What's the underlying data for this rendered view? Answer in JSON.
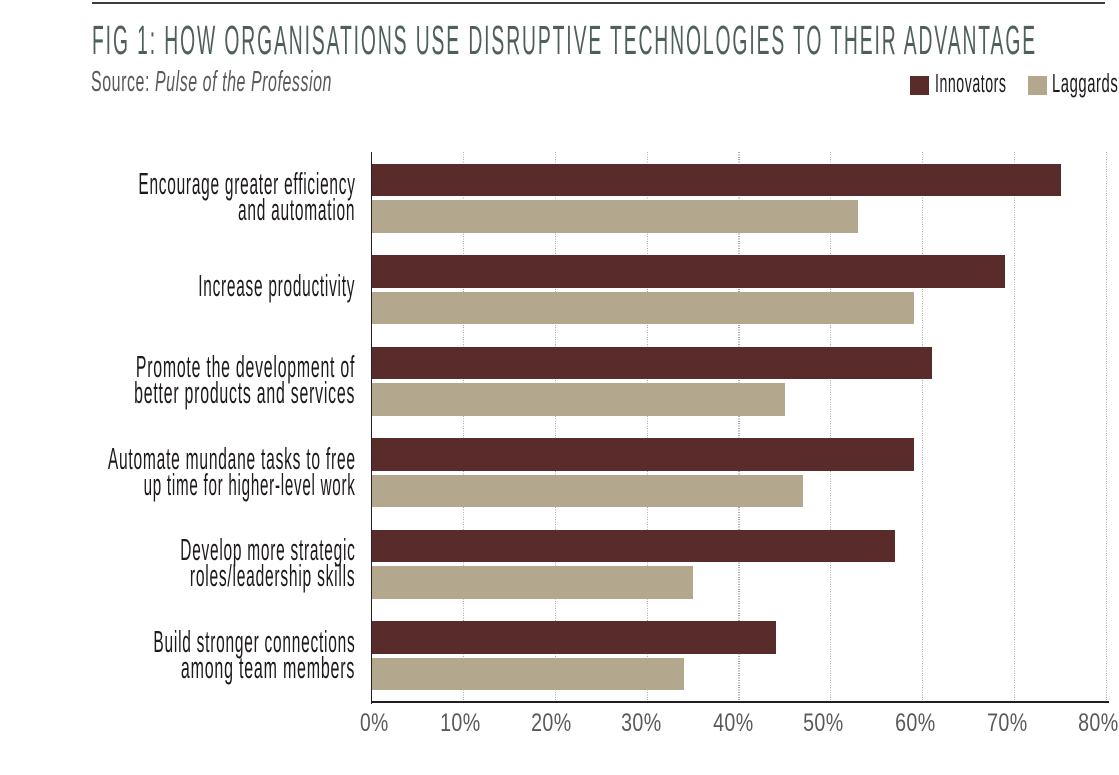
{
  "page": {
    "background": "#ffffff",
    "rule_color": "#3d3d3c"
  },
  "header": {
    "title": "FIG 1: HOW ORGANISATIONS USE DISRUPTIVE TECHNOLOGIES TO THEIR ADVANTAGE",
    "title_color": "#4f605a",
    "source_label": "Source:",
    "source_name": "Pulse of the Profession",
    "source_color": "#58595b"
  },
  "legend": {
    "items": [
      {
        "label": "Innovators",
        "color": "#5a2b2b"
      },
      {
        "label": "Laggards",
        "color": "#b3a88e"
      }
    ]
  },
  "chart_data": {
    "type": "bar",
    "orientation": "horizontal",
    "title": "FIG 1: HOW ORGANISATIONS USE DISRUPTIVE TECHNOLOGIES TO THEIR ADVANTAGE",
    "source": "Pulse of the Profession",
    "categories": [
      "Encourage greater efficiency and automation",
      "Increase productivity",
      "Promote the development of better products and services",
      "Automate mundane tasks to free up time for higher-level work",
      "Develop more strategic roles/leadership skills",
      "Build stronger connections among team members"
    ],
    "category_lines": [
      [
        "Encourage greater efficiency",
        "and automation"
      ],
      [
        "Increase productivity"
      ],
      [
        "Promote the development of",
        "better products and services"
      ],
      [
        "Automate mundane tasks to free",
        "up time for higher-level work"
      ],
      [
        "Develop more strategic",
        "roles/leadership skills"
      ],
      [
        "Build stronger connections",
        "among team members"
      ]
    ],
    "series": [
      {
        "name": "Innovators",
        "color": "#5a2b2b",
        "values": [
          75,
          69,
          61,
          59,
          57,
          44
        ]
      },
      {
        "name": "Laggards",
        "color": "#b3a88e",
        "values": [
          53,
          59,
          45,
          47,
          35,
          34
        ]
      }
    ],
    "x_ticks": [
      "0%",
      "10%",
      "20%",
      "30%",
      "40%",
      "50%",
      "60%",
      "70%",
      "80%"
    ],
    "xlim": [
      0,
      80
    ],
    "unit": "%",
    "grid": "dotted-vertical",
    "legend_position": "top-right",
    "axis_color": "#231f20",
    "grid_color": "#a9a9a9",
    "tick_color": "#58595b",
    "category_color": "#1e1a1b"
  }
}
